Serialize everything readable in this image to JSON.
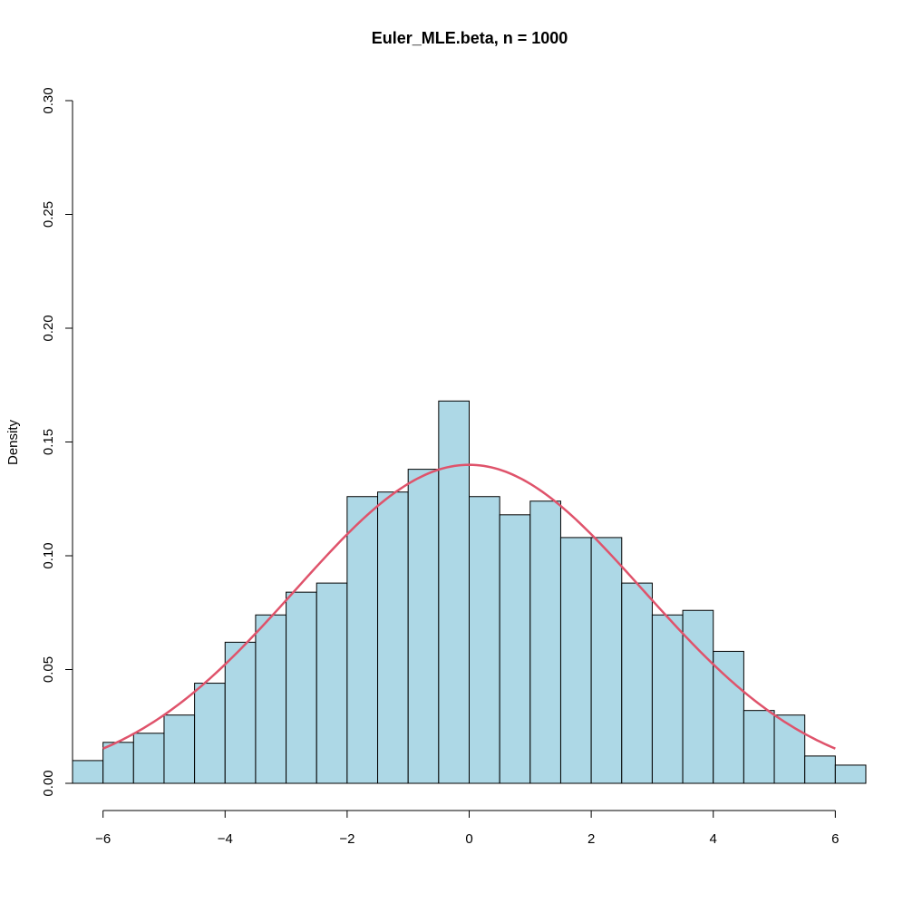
{
  "chart_data": {
    "type": "bar",
    "title": "Euler_MLE.beta, n = 1000",
    "xlabel": "",
    "ylabel": "Density",
    "xlim": [
      -6.5,
      6.5
    ],
    "ylim": [
      0,
      0.3
    ],
    "grid": false,
    "bar_color": "#add8e6",
    "curve_color": "#df536b",
    "bins": [
      {
        "x0": -6.5,
        "x1": -6.0,
        "density": 0.01
      },
      {
        "x0": -6.0,
        "x1": -5.5,
        "density": 0.018
      },
      {
        "x0": -5.5,
        "x1": -5.0,
        "density": 0.022
      },
      {
        "x0": -5.0,
        "x1": -4.5,
        "density": 0.03
      },
      {
        "x0": -4.5,
        "x1": -4.0,
        "density": 0.044
      },
      {
        "x0": -4.0,
        "x1": -3.5,
        "density": 0.062
      },
      {
        "x0": -3.5,
        "x1": -3.0,
        "density": 0.074
      },
      {
        "x0": -3.0,
        "x1": -2.5,
        "density": 0.084
      },
      {
        "x0": -2.5,
        "x1": -2.0,
        "density": 0.088
      },
      {
        "x0": -2.0,
        "x1": -1.5,
        "density": 0.126
      },
      {
        "x0": -1.5,
        "x1": -1.0,
        "density": 0.128
      },
      {
        "x0": -1.0,
        "x1": -0.5,
        "density": 0.138
      },
      {
        "x0": -0.5,
        "x1": 0.0,
        "density": 0.168
      },
      {
        "x0": 0.0,
        "x1": 0.5,
        "density": 0.126
      },
      {
        "x0": 0.5,
        "x1": 1.0,
        "density": 0.118
      },
      {
        "x0": 1.0,
        "x1": 1.5,
        "density": 0.124
      },
      {
        "x0": 1.5,
        "x1": 2.0,
        "density": 0.108
      },
      {
        "x0": 2.0,
        "x1": 2.5,
        "density": 0.108
      },
      {
        "x0": 2.5,
        "x1": 3.0,
        "density": 0.088
      },
      {
        "x0": 3.0,
        "x1": 3.5,
        "density": 0.074
      },
      {
        "x0": 3.5,
        "x1": 4.0,
        "density": 0.076
      },
      {
        "x0": 4.0,
        "x1": 4.5,
        "density": 0.058
      },
      {
        "x0": 4.5,
        "x1": 5.0,
        "density": 0.032
      },
      {
        "x0": 5.0,
        "x1": 5.5,
        "density": 0.03
      },
      {
        "x0": 5.5,
        "x1": 6.0,
        "density": 0.012
      },
      {
        "x0": 6.0,
        "x1": 6.5,
        "density": 0.008
      }
    ],
    "density_curve": {
      "type": "normal",
      "mean": 0,
      "sd": 2.85,
      "x_range": [
        -6,
        6
      ]
    },
    "x_ticks": [
      -6,
      -4,
      -2,
      0,
      2,
      4,
      6
    ],
    "x_tick_labels": [
      "−6",
      "−4",
      "−2",
      "0",
      "2",
      "4",
      "6"
    ],
    "y_ticks": [
      0,
      0.05,
      0.1,
      0.15,
      0.2,
      0.25,
      0.3
    ],
    "y_tick_labels": [
      "0.00",
      "0.05",
      "0.10",
      "0.15",
      "0.20",
      "0.25",
      "0.30"
    ]
  }
}
